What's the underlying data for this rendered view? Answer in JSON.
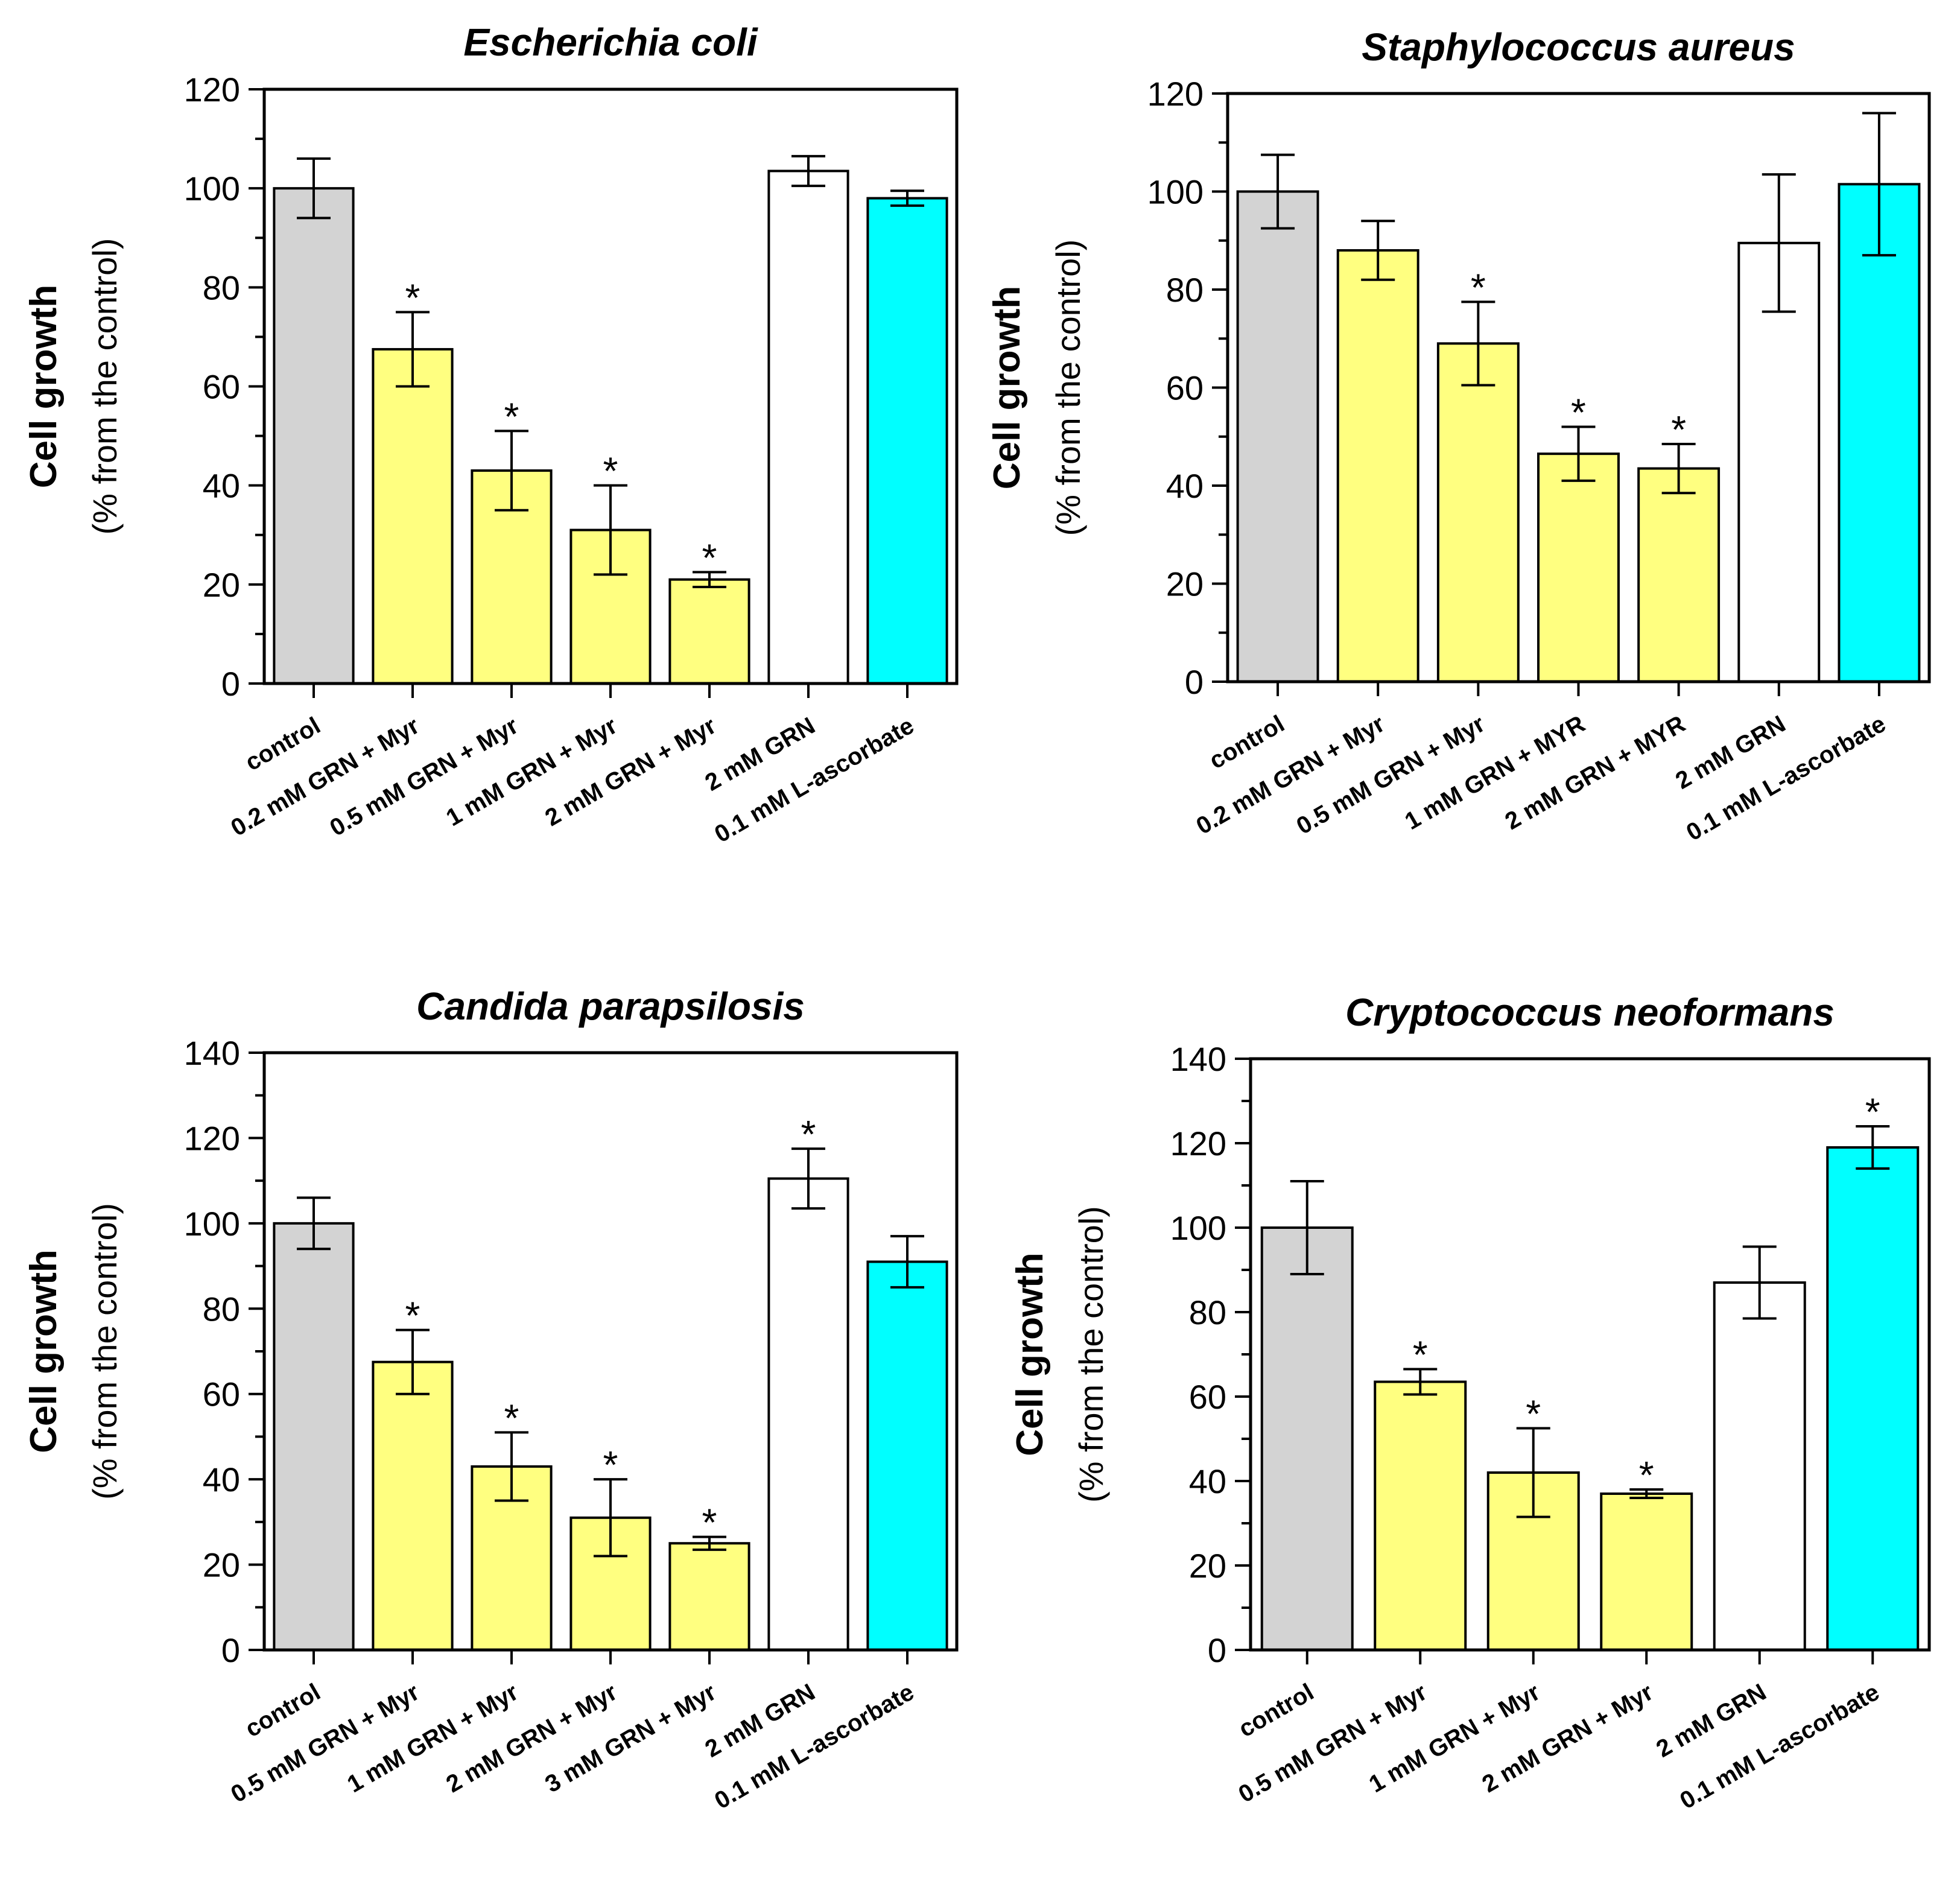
{
  "chart_data": [
    {
      "type": "bar",
      "title": "Escherichia coli",
      "ylabel": "Cell growth",
      "ylabel_sub": "(% from the control)",
      "ylim": [
        0,
        120
      ],
      "yticks": [
        0,
        20,
        40,
        60,
        80,
        100,
        120
      ],
      "categories": [
        "control",
        "0.2 mM GRN + Myr",
        "0.5 mM GRN + Myr",
        "1 mM GRN + Myr",
        "2 mM GRN + Myr",
        "2 mM GRN",
        "0.1 mM L-ascorbate"
      ],
      "values": [
        100,
        67.5,
        43,
        31,
        21,
        103.5,
        98
      ],
      "errors": [
        6,
        7.5,
        8,
        9,
        1.5,
        3,
        1.5
      ],
      "significant": [
        false,
        true,
        true,
        true,
        true,
        false,
        false
      ],
      "colors": [
        "#d3d3d3",
        "#ffff80",
        "#ffff80",
        "#ffff80",
        "#ffff80",
        "#ffffff",
        "#00ffff"
      ]
    },
    {
      "type": "bar",
      "title": "Staphylococcus aureus",
      "ylabel": "Cell growth",
      "ylabel_sub": "(% from the control)",
      "ylim": [
        0,
        120
      ],
      "yticks": [
        0,
        20,
        40,
        60,
        80,
        100,
        120
      ],
      "categories": [
        "control",
        "0.2 mM GRN + Myr",
        "0.5 mM GRN + Myr",
        "1 mM GRN + MYR",
        "2 mM GRN + MYR",
        "2 mM GRN",
        "0.1 mM L-ascorbate"
      ],
      "values": [
        100,
        88,
        69,
        46.5,
        43.5,
        89.5,
        101.5
      ],
      "errors": [
        7.5,
        6,
        8.5,
        5.5,
        5,
        14,
        14.5
      ],
      "significant": [
        false,
        false,
        true,
        true,
        true,
        false,
        false
      ],
      "colors": [
        "#d3d3d3",
        "#ffff80",
        "#ffff80",
        "#ffff80",
        "#ffff80",
        "#ffffff",
        "#00ffff"
      ]
    },
    {
      "type": "bar",
      "title": "Candida parapsilosis",
      "ylabel": "Cell growth",
      "ylabel_sub": "(% from the control)",
      "ylim": [
        0,
        140
      ],
      "yticks": [
        0,
        20,
        40,
        60,
        80,
        100,
        120,
        140
      ],
      "categories": [
        "control",
        "0.5 mM GRN + Myr",
        "1 mM GRN + Myr",
        "2 mM GRN + Myr",
        "3 mM GRN + Myr",
        "2 mM GRN",
        "0.1 mM L-ascorbate"
      ],
      "values": [
        100,
        67.5,
        43,
        31,
        25,
        110.5,
        91
      ],
      "errors": [
        6,
        7.5,
        8,
        9,
        1.5,
        7,
        6
      ],
      "significant": [
        false,
        true,
        true,
        true,
        true,
        true,
        false
      ],
      "colors": [
        "#d3d3d3",
        "#ffff80",
        "#ffff80",
        "#ffff80",
        "#ffff80",
        "#ffffff",
        "#00ffff"
      ]
    },
    {
      "type": "bar",
      "title": "Cryptococcus neoformans",
      "ylabel": "Cell growth",
      "ylabel_sub": "(% from the control)",
      "ylim": [
        0,
        140
      ],
      "yticks": [
        0,
        20,
        40,
        60,
        80,
        100,
        120,
        140
      ],
      "categories": [
        "control",
        "0.5 mM GRN + Myr",
        "1 mM GRN + Myr",
        "2 mM GRN + Myr",
        "2 mM GRN",
        "0.1 mM L-ascorbate"
      ],
      "values": [
        100,
        63.5,
        42,
        37,
        87,
        119
      ],
      "errors": [
        11,
        3,
        10.5,
        1,
        8.5,
        5
      ],
      "significant": [
        false,
        true,
        true,
        true,
        false,
        true
      ],
      "colors": [
        "#d3d3d3",
        "#ffff80",
        "#ffff80",
        "#ffff80",
        "#ffffff",
        "#00ffff"
      ]
    }
  ],
  "star_symbol": "*"
}
